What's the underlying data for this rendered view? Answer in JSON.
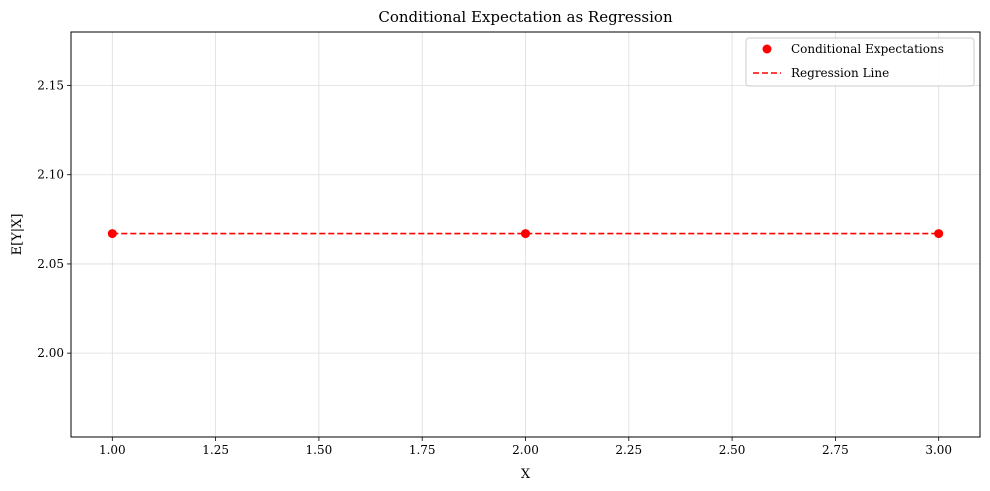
{
  "chart_data": {
    "type": "scatter",
    "title": "Conditional Expectation as Regression",
    "xlabel": "X",
    "ylabel": "E[Y|X]",
    "xlim": [
      0.9,
      3.1
    ],
    "ylim": [
      1.953,
      2.18
    ],
    "xticks": [
      1.0,
      1.25,
      1.5,
      1.75,
      2.0,
      2.25,
      2.5,
      2.75,
      3.0
    ],
    "xtick_labels": [
      "1.00",
      "1.25",
      "1.50",
      "1.75",
      "2.00",
      "2.25",
      "2.50",
      "2.75",
      "3.00"
    ],
    "yticks": [
      2.0,
      2.05,
      2.1,
      2.15
    ],
    "ytick_labels": [
      "2.00",
      "2.05",
      "2.10",
      "2.15"
    ],
    "grid": true,
    "legend_position": "top-right",
    "series": [
      {
        "name": "Conditional Expectations",
        "kind": "scatter",
        "color": "#ff0000",
        "x": [
          1,
          2,
          3
        ],
        "y": [
          2.067,
          2.067,
          2.067
        ]
      },
      {
        "name": "Regression Line",
        "kind": "line",
        "style": "dashed",
        "color": "#ff0000",
        "x": [
          1,
          3
        ],
        "y": [
          2.067,
          2.067
        ]
      }
    ]
  }
}
